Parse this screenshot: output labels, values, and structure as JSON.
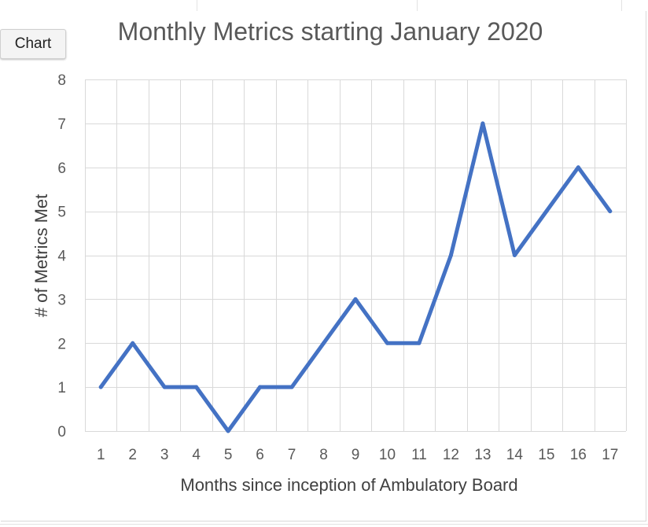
{
  "chart_tag": "Chart",
  "chart_data": {
    "type": "line",
    "title": "Monthly Metrics starting January 2020",
    "xlabel": "Months since inception of Ambulatory Board",
    "ylabel": "# of Metrics Met",
    "categories": [
      "1",
      "2",
      "3",
      "4",
      "5",
      "6",
      "7",
      "8",
      "9",
      "10",
      "11",
      "12",
      "13",
      "14",
      "15",
      "16",
      "17"
    ],
    "series": [
      {
        "values": [
          1,
          2,
          1,
          1,
          0,
          1,
          1,
          2,
          3,
          2,
          2,
          4,
          7,
          4,
          5,
          6,
          5
        ]
      }
    ],
    "ylim": [
      0,
      8
    ],
    "yticks": [
      0,
      1,
      2,
      3,
      4,
      5,
      6,
      7,
      8
    ],
    "grid": true,
    "legend": "none",
    "line_color": "#4472C4"
  }
}
